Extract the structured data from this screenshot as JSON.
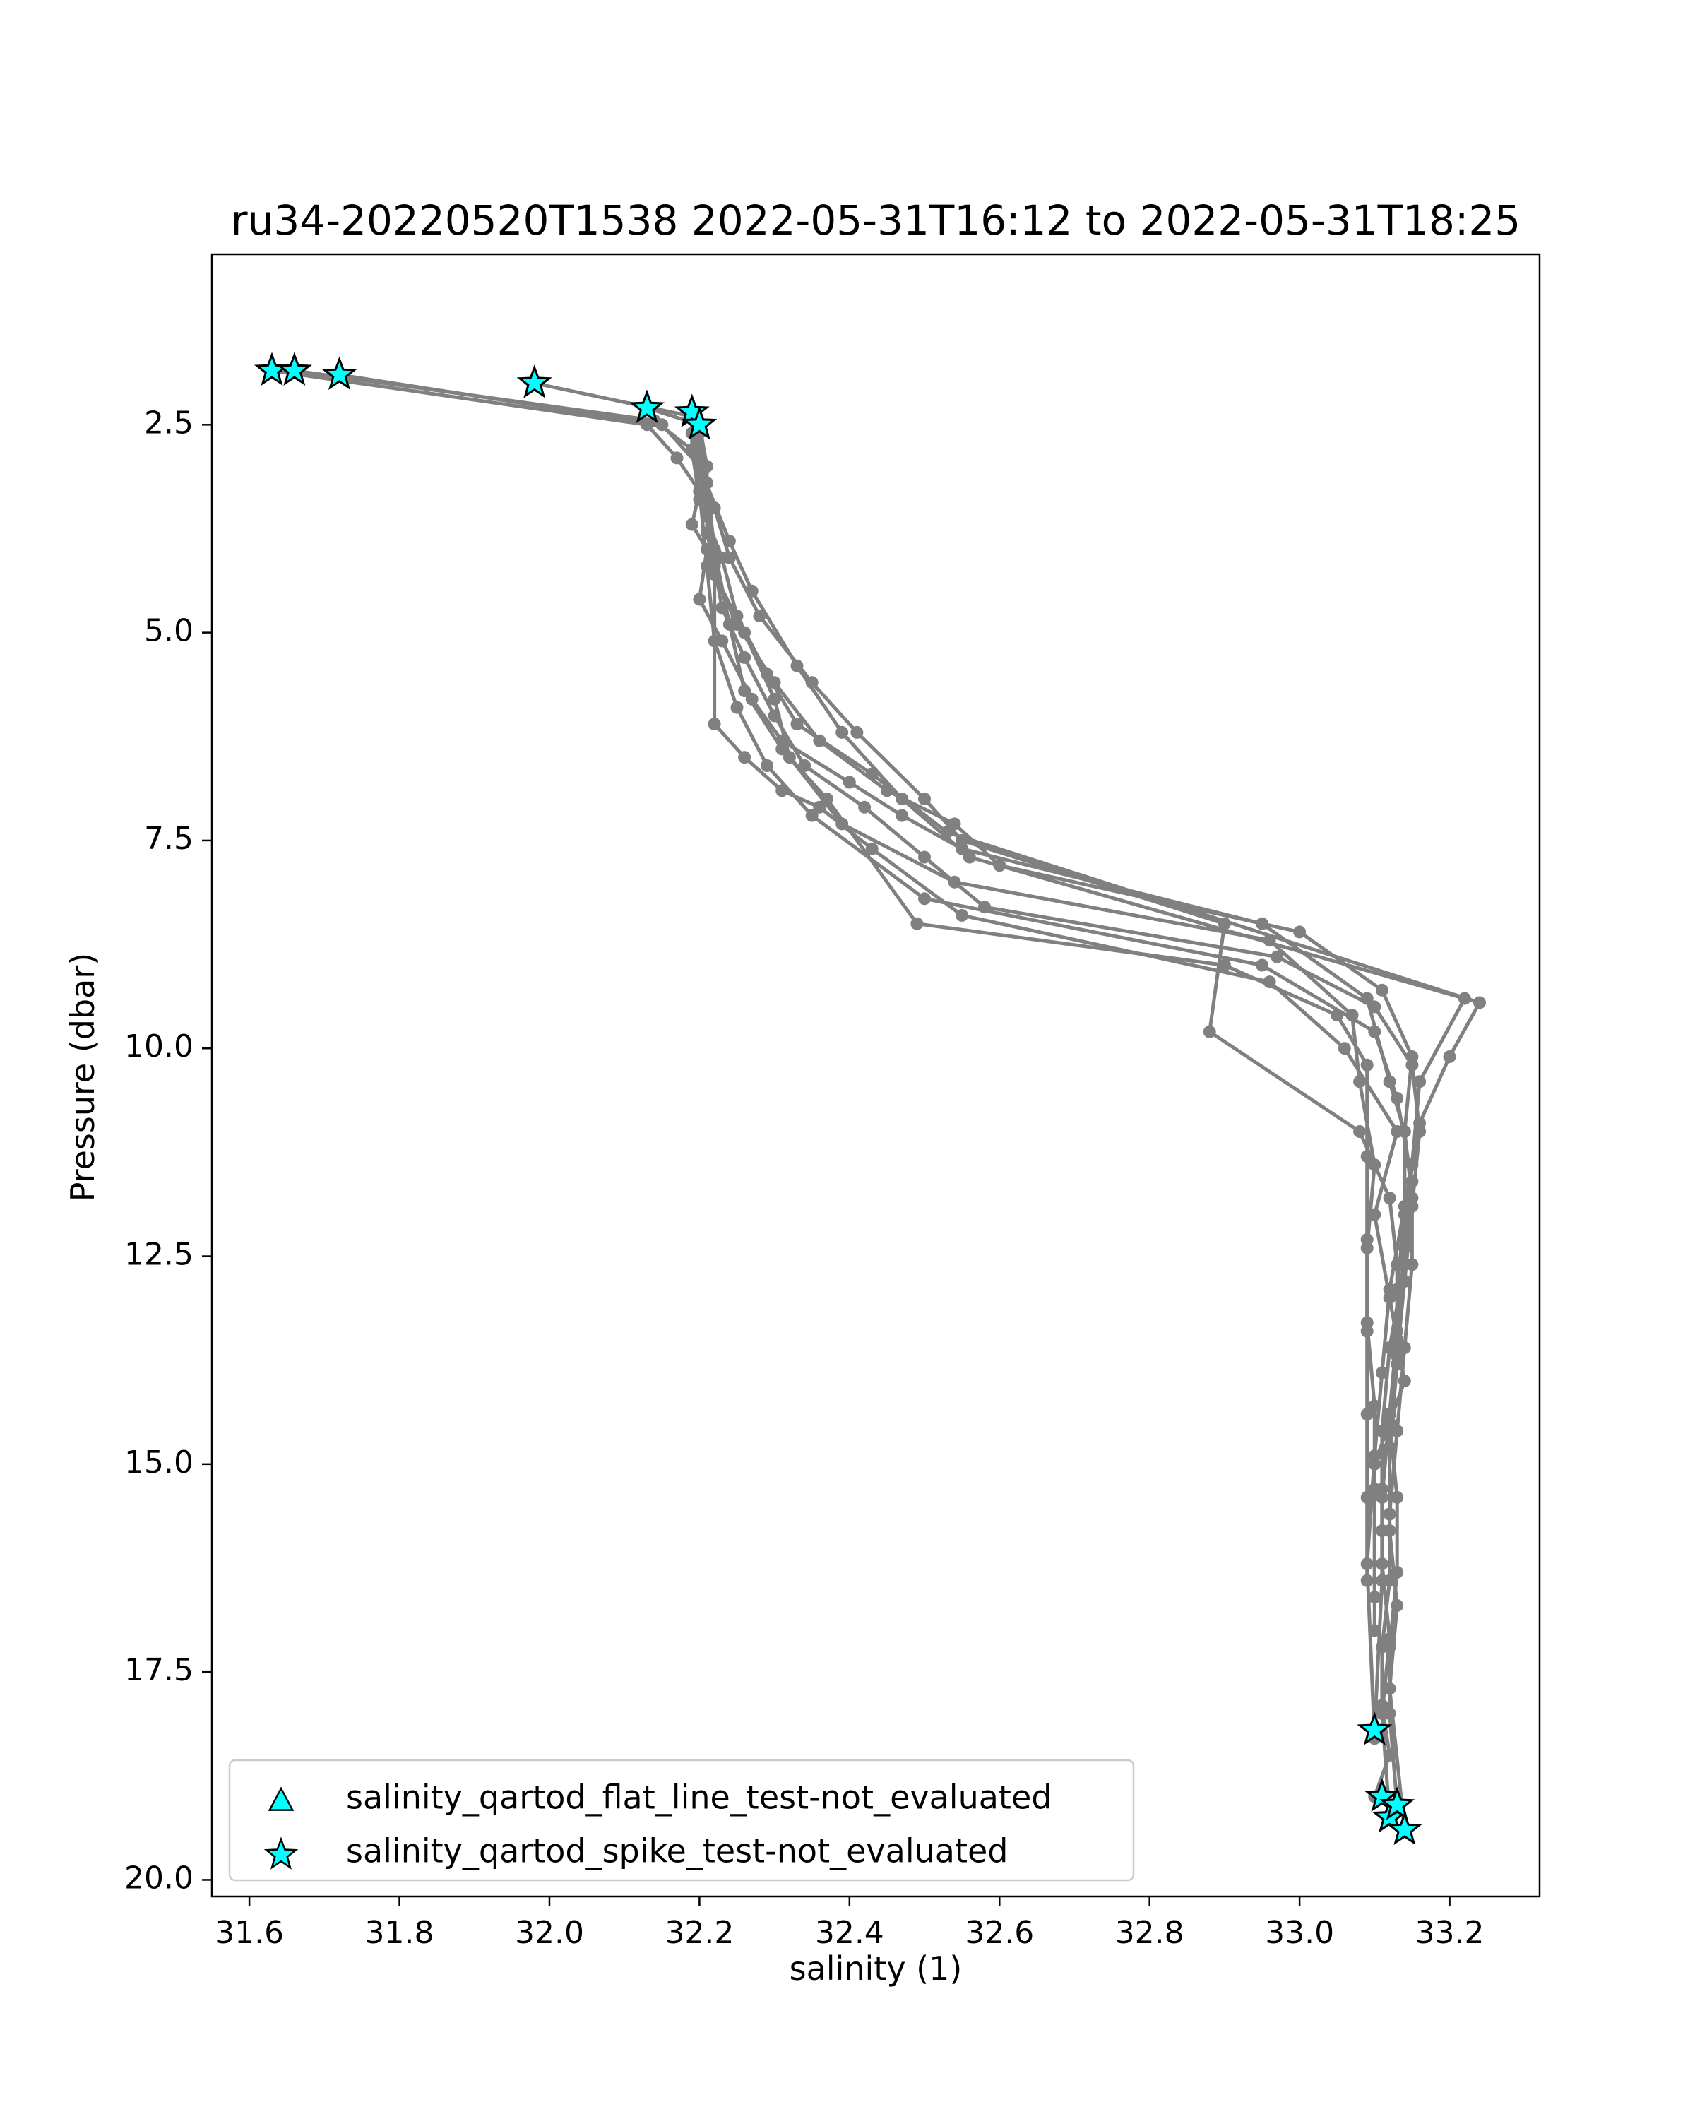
{
  "chart_data": {
    "type": "line",
    "title": "ru34-20220520T1538 2022-05-31T16:12 to 2022-05-31T18:25",
    "xlabel": "salinity (1)",
    "ylabel": "Pressure (dbar)",
    "xlim": [
      31.55,
      33.32
    ],
    "ylim": [
      20.2,
      0.45
    ],
    "y_inverted": true,
    "xticks": [
      "31.6",
      "31.8",
      "32.0",
      "32.2",
      "32.4",
      "32.6",
      "32.8",
      "33.0",
      "33.2"
    ],
    "yticks": [
      "2.5",
      "5.0",
      "7.5",
      "10.0",
      "12.5",
      "15.0",
      "17.5",
      "20.0"
    ],
    "grid": false,
    "legend_location": "lower-left",
    "line_color": "#808080",
    "series": [
      {
        "x": [
          31.63,
          32.13,
          32.17,
          32.2,
          32.19,
          32.21,
          32.2,
          32.23,
          32.27,
          32.31,
          32.4,
          32.47,
          32.55,
          32.95,
          33.09,
          33.12,
          33.14,
          33.15,
          33.15,
          33.14,
          33.13,
          33.12,
          33.12,
          33.11,
          33.11,
          33.12,
          33.1
        ],
        "y": [
          1.85,
          2.5,
          2.9,
          3.3,
          3.7,
          4.0,
          4.6,
          5.1,
          5.8,
          6.3,
          6.8,
          7.2,
          7.6,
          8.5,
          9.4,
          10.4,
          11.0,
          11.8,
          12.6,
          13.6,
          14.6,
          15.6,
          16.4,
          17.2,
          17.9,
          18.5,
          19.0
        ]
      },
      {
        "x": [
          31.66,
          32.14,
          32.19,
          32.21,
          32.21,
          32.22,
          32.23,
          32.26,
          32.3,
          32.34,
          32.42,
          32.5,
          32.58,
          32.97,
          33.1,
          33.15,
          33.16,
          33.15,
          33.14,
          33.13,
          33.12,
          33.13,
          33.13,
          33.12,
          33.12,
          33.13
        ],
        "y": [
          1.85,
          2.45,
          2.8,
          3.2,
          3.8,
          4.2,
          4.7,
          5.3,
          6.0,
          6.6,
          7.1,
          7.7,
          8.3,
          8.9,
          9.5,
          10.2,
          11.0,
          11.9,
          12.8,
          13.7,
          14.5,
          15.4,
          16.3,
          17.2,
          18.0,
          19.1
        ]
      },
      {
        "x": [
          31.72,
          32.15,
          32.2,
          32.21,
          32.22,
          32.25,
          32.3,
          32.36,
          32.45,
          32.54,
          32.6,
          33.0,
          33.11,
          33.15,
          33.14,
          33.14,
          33.13,
          33.13,
          33.12,
          33.12,
          33.13,
          33.12,
          33.14
        ],
        "y": [
          1.9,
          2.5,
          3.0,
          3.6,
          4.3,
          4.9,
          5.6,
          6.3,
          6.9,
          7.3,
          7.8,
          8.6,
          9.3,
          10.1,
          11.0,
          12.0,
          12.9,
          13.8,
          14.8,
          15.8,
          16.7,
          17.7,
          19.4
        ]
      },
      {
        "x": [
          31.98,
          32.19,
          32.2,
          32.22,
          32.24,
          32.28,
          32.35,
          32.41,
          32.5,
          32.55,
          32.9,
          32.88,
          33.08,
          33.12,
          33.13,
          33.13,
          33.12,
          33.11,
          33.11,
          33.12,
          33.11,
          33.12
        ],
        "y": [
          2.0,
          2.4,
          2.9,
          3.5,
          4.1,
          4.8,
          5.6,
          6.2,
          7.0,
          7.5,
          8.5,
          9.8,
          11.0,
          11.8,
          12.6,
          13.5,
          14.4,
          15.3,
          16.2,
          17.1,
          18.0,
          19.25
        ]
      },
      {
        "x": [
          32.13,
          32.2,
          32.2,
          32.24,
          32.27,
          32.33,
          32.39,
          32.47,
          32.56,
          33.22,
          33.16,
          33.15,
          33.14,
          33.13,
          33.12,
          33.11,
          33.11,
          33.1
        ],
        "y": [
          2.3,
          2.5,
          3.0,
          3.9,
          4.5,
          5.4,
          6.2,
          7.0,
          7.7,
          9.4,
          10.4,
          11.4,
          12.4,
          13.4,
          14.4,
          15.4,
          16.4,
          18.2
        ]
      },
      {
        "x": [
          32.19,
          32.19,
          32.2,
          32.23,
          32.25,
          32.29,
          32.33,
          32.43,
          32.53,
          33.24,
          33.2,
          33.16,
          33.14,
          33.12,
          33.11,
          33.1,
          33.09,
          33.1
        ],
        "y": [
          2.35,
          2.8,
          3.4,
          4.1,
          4.8,
          5.5,
          6.1,
          6.7,
          7.4,
          9.45,
          10.1,
          10.9,
          11.9,
          12.9,
          13.9,
          14.9,
          16.2,
          18.3
        ]
      },
      {
        "x": [
          32.2,
          32.21,
          32.21,
          32.22,
          32.26,
          32.3,
          32.32,
          32.39,
          32.54,
          32.96,
          33.07,
          33.08,
          33.1,
          33.09,
          33.09,
          33.09,
          33.09,
          33.09
        ],
        "y": [
          2.5,
          3.0,
          3.6,
          4.3,
          5.0,
          5.8,
          6.5,
          7.3,
          8.0,
          8.7,
          9.6,
          10.4,
          11.4,
          12.4,
          13.4,
          14.4,
          15.4,
          16.4
        ]
      },
      {
        "x": [
          32.2,
          32.21,
          32.22,
          32.24,
          32.26,
          32.31,
          32.37,
          32.49,
          32.9,
          33.05,
          33.09,
          33.09,
          33.09,
          33.09,
          33.1,
          33.1,
          33.1
        ],
        "y": [
          2.55,
          3.2,
          4.0,
          4.9,
          5.7,
          6.4,
          7.0,
          8.5,
          9.0,
          9.6,
          10.2,
          11.3,
          12.3,
          13.3,
          14.3,
          15.3,
          16.6
        ]
      },
      {
        "x": [
          32.19,
          32.2,
          32.21,
          32.22,
          32.25,
          32.29,
          32.35,
          32.5,
          32.95,
          33.1,
          33.13,
          33.15,
          33.14,
          33.12,
          33.11,
          33.11
        ],
        "y": [
          2.6,
          3.3,
          4.2,
          5.1,
          5.9,
          6.6,
          7.2,
          8.2,
          9.0,
          9.8,
          10.6,
          11.6,
          12.6,
          13.6,
          14.6,
          15.8
        ]
      },
      {
        "x": [
          32.2,
          32.21,
          32.22,
          32.22,
          32.26,
          32.31,
          32.36,
          32.43,
          32.55,
          32.96,
          33.06,
          33.13,
          33.1,
          33.12,
          33.14,
          33.1,
          33.1
        ],
        "y": [
          2.6,
          3.4,
          4.1,
          6.1,
          6.5,
          6.9,
          7.1,
          7.6,
          8.4,
          9.2,
          10.0,
          11.0,
          12.0,
          13.0,
          14.0,
          15.0,
          17.0
        ]
      }
    ],
    "flagged": {
      "salinity_qartod_spike_test-not_evaluated": {
        "x": [
          31.63,
          31.66,
          31.72,
          31.98,
          32.13,
          32.19,
          32.2,
          33.1,
          33.11,
          33.12,
          33.13,
          33.14
        ],
        "y": [
          1.85,
          1.85,
          1.9,
          2.0,
          2.3,
          2.35,
          2.5,
          18.2,
          19.0,
          19.25,
          19.1,
          19.4
        ]
      },
      "salinity_qartod_flat_line_test-not_evaluated": {
        "x": [],
        "y": []
      }
    },
    "legend": [
      {
        "label": "salinity_qartod_flat_line_test-not_evaluated",
        "marker": "triangle",
        "color": "#00ffff"
      },
      {
        "label": "salinity_qartod_spike_test-not_evaluated",
        "marker": "star",
        "color": "#00ffff"
      }
    ]
  }
}
